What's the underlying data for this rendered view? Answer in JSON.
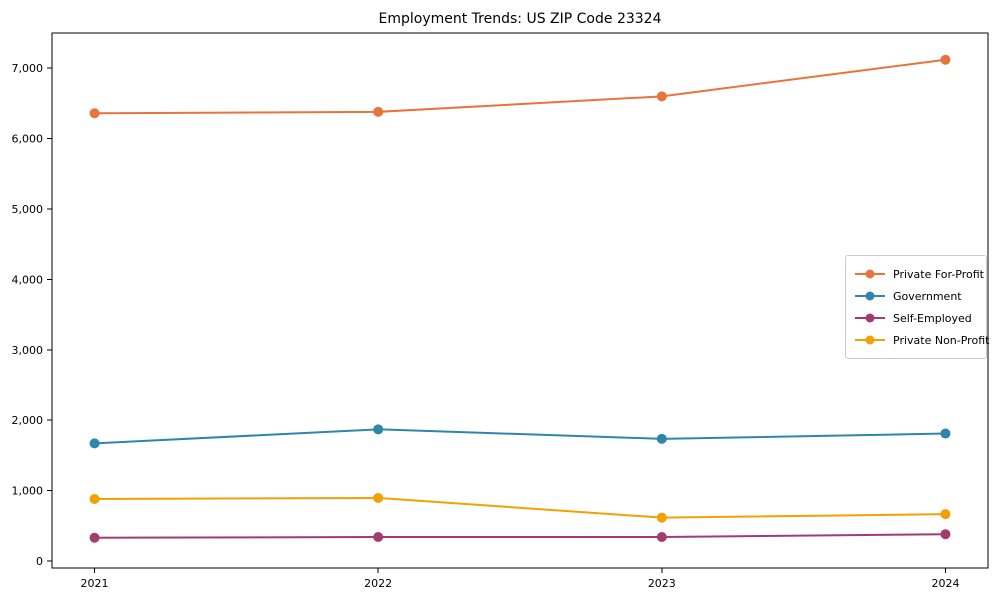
{
  "chart_data": {
    "type": "line",
    "title": "Employment Trends: US ZIP Code 23324",
    "xlabel": "",
    "ylabel": "",
    "x": [
      2021,
      2022,
      2023,
      2024
    ],
    "x_labels": [
      "2021",
      "2022",
      "2023",
      "2024"
    ],
    "series": [
      {
        "name": "Private For-Profit",
        "color": "#E8743B",
        "values": [
          6360,
          6380,
          6600,
          7120
        ]
      },
      {
        "name": "Government",
        "color": "#2E86AB",
        "values": [
          1670,
          1870,
          1735,
          1810
        ]
      },
      {
        "name": "Self-Employed",
        "color": "#A23B72",
        "values": [
          330,
          340,
          340,
          380
        ]
      },
      {
        "name": "Private Non-Profit",
        "color": "#F2A104",
        "values": [
          880,
          895,
          615,
          665
        ]
      }
    ],
    "yticks": [
      0,
      1000,
      2000,
      3000,
      4000,
      5000,
      6000,
      7000
    ],
    "ytick_labels": [
      "0",
      "1,000",
      "2,000",
      "3,000",
      "4,000",
      "5,000",
      "6,000",
      "7,000"
    ],
    "xlim": [
      2020.85,
      2024.15
    ],
    "ylim": [
      -100,
      7500
    ],
    "grid": false,
    "legend_position": "center-right",
    "axes_box": true
  }
}
